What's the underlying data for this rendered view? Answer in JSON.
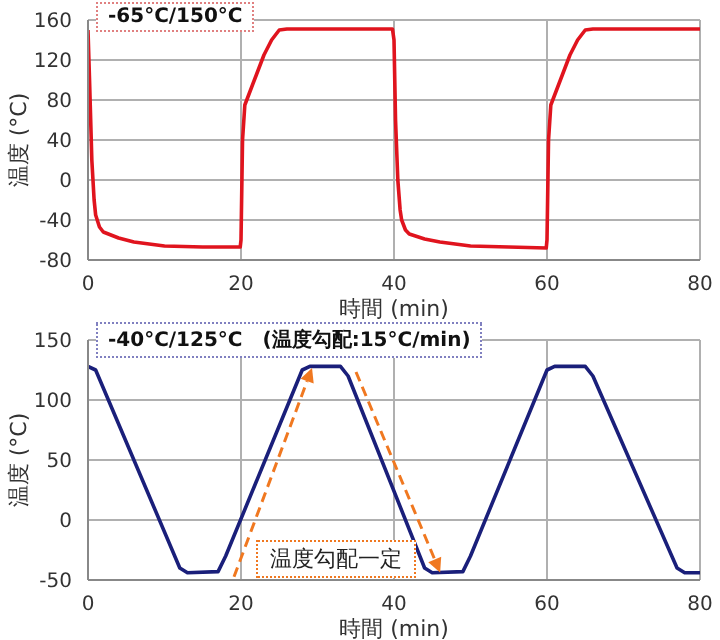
{
  "chart_data": [
    {
      "type": "line",
      "xlabel": "時間 (min)",
      "ylabel": "温度 (°C)",
      "annotations": [
        "-65°C/150°C"
      ],
      "xlim": [
        0,
        80
      ],
      "xticks": [
        0,
        20,
        40,
        60,
        80
      ],
      "ylim": [
        -80,
        160
      ],
      "yticks": [
        -80,
        -40,
        0,
        40,
        80,
        120,
        160
      ],
      "grid": true,
      "legend": false,
      "marker": "none",
      "series": [
        {
          "color": "#e0141e",
          "x": [
            0,
            0.2,
            0.5,
            0.8,
            1,
            1.5,
            2,
            4,
            6,
            8,
            10,
            15,
            19.9,
            20,
            20.2,
            20.5,
            21,
            22,
            23,
            24,
            25,
            26,
            30,
            39.8,
            40,
            40.2,
            40.5,
            40.8,
            41,
            41.5,
            42,
            44,
            46,
            48,
            50,
            55,
            59.9,
            60,
            60.2,
            60.5,
            61,
            62,
            63,
            64,
            65,
            66,
            80
          ],
          "values": [
            150,
            100,
            20,
            -20,
            -35,
            -47,
            -52,
            -58,
            -62,
            -64,
            -66,
            -67,
            -67,
            -60,
            40,
            75,
            85,
            105,
            125,
            140,
            150,
            151,
            151,
            151,
            140,
            60,
            0,
            -30,
            -40,
            -50,
            -54,
            -59,
            -62,
            -64,
            -66,
            -67,
            -68,
            -60,
            40,
            75,
            85,
            105,
            125,
            140,
            150,
            151,
            151
          ]
        }
      ]
    },
    {
      "type": "line",
      "xlabel": "時間 (min)",
      "ylabel": "温度 (°C)",
      "annotations": [
        "-40°C/125°C　(温度勾配:15°C/min)",
        "温度勾配一定"
      ],
      "xlim": [
        0,
        80
      ],
      "xticks": [
        0,
        20,
        40,
        60,
        80
      ],
      "ylim": [
        -50,
        150
      ],
      "yticks": [
        -50,
        0,
        50,
        100,
        150
      ],
      "grid": true,
      "legend": false,
      "marker": "none",
      "series": [
        {
          "color": "#1a1f7a",
          "x": [
            0,
            1,
            12,
            13,
            17,
            18,
            28,
            29,
            33,
            34,
            44,
            45,
            49,
            50,
            60,
            61,
            65,
            66,
            77,
            78,
            80
          ],
          "values": [
            128,
            125,
            -40,
            -44,
            -43,
            -30,
            125,
            128,
            128,
            120,
            -40,
            -44,
            -43,
            -30,
            125,
            128,
            128,
            120,
            -40,
            -44,
            -44
          ]
        }
      ]
    }
  ]
}
